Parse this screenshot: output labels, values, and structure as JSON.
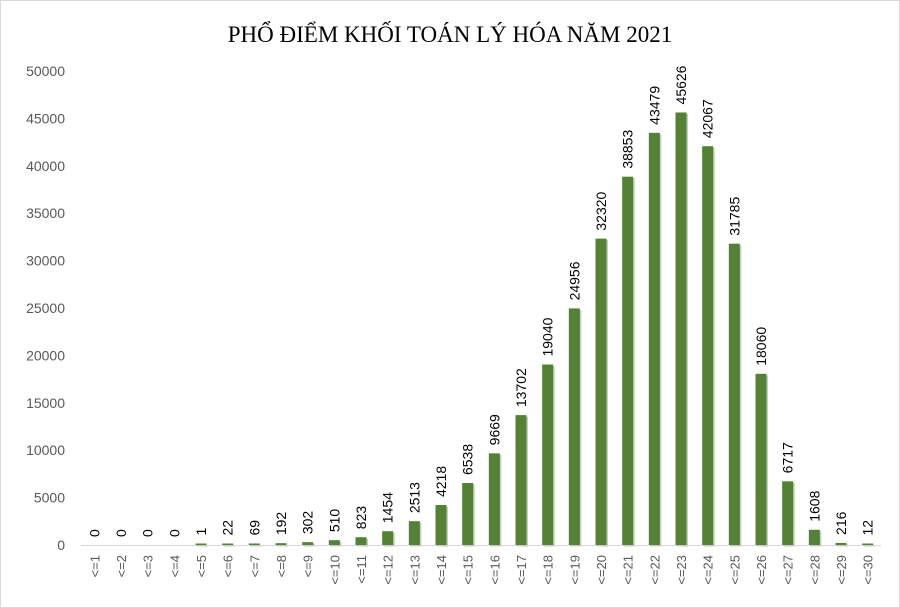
{
  "chart_data": {
    "type": "bar",
    "title": "PHỔ ĐIỂM KHỐI TOÁN LÝ HÓA NĂM 2021",
    "xlabel": "",
    "ylabel": "",
    "categories": [
      "<=1",
      "<=2",
      "<=3",
      "<=4",
      "<=5",
      "<=6",
      "<=7",
      "<=8",
      "<=9",
      "<=10",
      "<=11",
      "<=12",
      "<=13",
      "<=14",
      "<=15",
      "<=16",
      "<=17",
      "<=18",
      "<=19",
      "<=20",
      "<=21",
      "<=22",
      "<=23",
      "<=24",
      "<=25",
      "<=26",
      "<=27",
      "<=28",
      "<=29",
      "<=30"
    ],
    "values": [
      0,
      0,
      0,
      0,
      1,
      22,
      69,
      192,
      302,
      510,
      823,
      1454,
      2513,
      4218,
      6538,
      9669,
      13702,
      19040,
      24956,
      32320,
      38853,
      43479,
      45626,
      42067,
      31785,
      18060,
      6717,
      1608,
      216,
      12
    ],
    "data_labels": [
      "0",
      "0",
      "0",
      "0",
      "1",
      "22",
      "69",
      "192",
      "302",
      "510",
      "823",
      "1454",
      "2513",
      "4218",
      "6538",
      "9669",
      "13702",
      "19040",
      "24956",
      "32320",
      "38853",
      "43479",
      "45626",
      "42067",
      "31785",
      "18060",
      "6717",
      "1608",
      "216",
      "12"
    ],
    "ylim": [
      0,
      50000
    ],
    "yticks": [
      "0",
      "5000",
      "10000",
      "15000",
      "20000",
      "25000",
      "30000",
      "35000",
      "40000",
      "45000",
      "50000"
    ],
    "grid": false,
    "legend": "none",
    "bar_color": "#548235"
  }
}
